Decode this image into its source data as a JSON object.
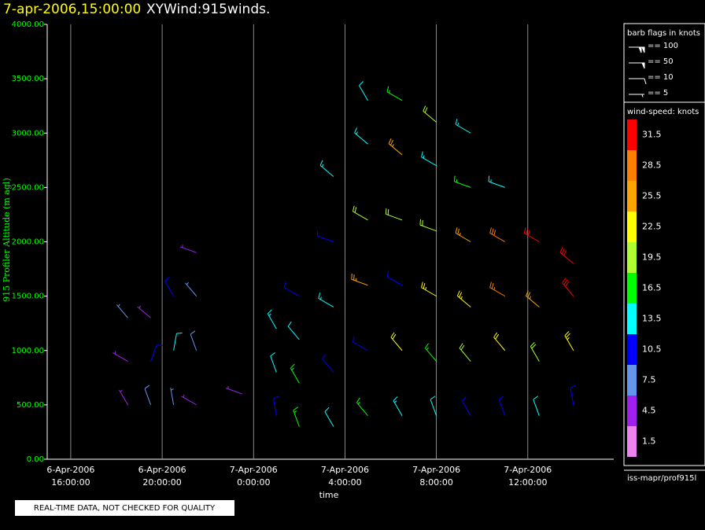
{
  "chart_data": {
    "type": "windbarb",
    "title_time": "7-apr-2006,15:00:00",
    "title": "XYWind:915winds.",
    "ylabel": "915 Profiler Altitude (m agl)",
    "xlabel": "time",
    "note": "REAL-TIME DATA, NOT CHECKED FOR QUALITY",
    "source": "iss-mapr/prof915l",
    "xlim": [
      14.97,
      39.76
    ],
    "ylim": [
      0,
      4000
    ],
    "xticks": [
      {
        "value": 16,
        "date": "6-Apr-2006",
        "label": "16:00:00"
      },
      {
        "value": 20,
        "date": "6-Apr-2006",
        "label": "20:00:00"
      },
      {
        "value": 24,
        "date": "7-Apr-2006",
        "label": "0:00:00"
      },
      {
        "value": 28,
        "date": "7-Apr-2006",
        "label": "4:00:00"
      },
      {
        "value": 32,
        "date": "7-Apr-2006",
        "label": "8:00:00"
      },
      {
        "value": 36,
        "date": "7-Apr-2006",
        "label": "12:00:00"
      }
    ],
    "yticks": [
      {
        "value": 0,
        "label": "0.00"
      },
      {
        "value": 500,
        "label": "500.00"
      },
      {
        "value": 1000,
        "label": "1000.00"
      },
      {
        "value": 1500,
        "label": "1500.00"
      },
      {
        "value": 2000,
        "label": "2000.00"
      },
      {
        "value": 2500,
        "label": "2500.00"
      },
      {
        "value": 3000,
        "label": "3000.00"
      },
      {
        "value": 3500,
        "label": "3500.00"
      },
      {
        "value": 4000,
        "label": "4000.00"
      }
    ],
    "grid": true,
    "flag_title": "barb flags in knots",
    "flags": [
      {
        "value": 100,
        "label": "== 100"
      },
      {
        "value": 50,
        "label": "== 50"
      },
      {
        "value": 10,
        "label": "== 10"
      },
      {
        "value": 5,
        "label": "== 5"
      }
    ],
    "scale_title": "wind-speed: knots",
    "scale": [
      {
        "value": 31.5,
        "label": "31.5",
        "color": "#ff0000"
      },
      {
        "value": 28.5,
        "label": "28.5",
        "color": "#ff7f00"
      },
      {
        "value": 25.5,
        "label": "25.5",
        "color": "#ffa500"
      },
      {
        "value": 22.5,
        "label": "22.5",
        "color": "#ffff00"
      },
      {
        "value": 19.5,
        "label": "19.5",
        "color": "#adff2f"
      },
      {
        "value": 16.5,
        "label": "16.5",
        "color": "#00ff00"
      },
      {
        "value": 13.5,
        "label": "13.5",
        "color": "#00ffff"
      },
      {
        "value": 10.5,
        "label": "10.5",
        "color": "#0000ff"
      },
      {
        "value": 7.5,
        "label": "7.5",
        "color": "#6495ed"
      },
      {
        "value": 4.5,
        "label": "4.5",
        "color": "#a020f0"
      },
      {
        "value": 1.5,
        "label": "1.5",
        "color": "#ee82ee"
      }
    ],
    "barbs": {
      "x": [
        18.5,
        18.5,
        18.5,
        19.5,
        19.5,
        19.5,
        20.5,
        20.5,
        20.5,
        21.5,
        21.5,
        21.5,
        21.5,
        23.5,
        25,
        25,
        25,
        26,
        26,
        26,
        26,
        27.5,
        27.5,
        27.5,
        27.5,
        27.5,
        29,
        29,
        29,
        29,
        29,
        29,
        30.5,
        30.5,
        30.5,
        30.5,
        30.5,
        30.5,
        32,
        32,
        32,
        32,
        32,
        32,
        33.5,
        33.5,
        33.5,
        33.5,
        33.5,
        33.5,
        35,
        35,
        35,
        35,
        35,
        36.5,
        36.5,
        36.5,
        36.5,
        38,
        38,
        38,
        38
      ],
      "altitude": [
        500,
        900,
        1300,
        500,
        900,
        1300,
        500,
        1000,
        1500,
        500,
        1000,
        1500,
        1900,
        600,
        400,
        800,
        1200,
        300,
        700,
        1100,
        1500,
        300,
        800,
        1400,
        2000,
        2600,
        400,
        1000,
        1600,
        2200,
        2900,
        3300,
        400,
        1000,
        1600,
        2200,
        2800,
        3300,
        400,
        900,
        1500,
        2100,
        2700,
        3100,
        400,
        900,
        1400,
        2000,
        2500,
        3000,
        400,
        1000,
        1500,
        2000,
        2500,
        400,
        900,
        1400,
        2000,
        500,
        1000,
        1500,
        1800
      ],
      "speed": [
        5,
        4,
        6,
        8,
        10,
        5,
        6,
        12,
        9,
        4,
        8,
        6,
        5,
        5,
        11,
        12,
        14,
        15,
        16,
        12,
        11,
        12,
        11,
        14,
        10,
        13,
        17,
        11,
        26,
        18,
        14,
        12,
        14,
        22,
        11,
        20,
        26,
        17,
        12,
        17,
        23,
        20,
        13,
        19,
        10,
        19,
        23,
        25,
        17,
        14,
        11,
        22,
        27,
        29,
        13,
        12,
        20,
        25,
        31,
        11,
        23,
        30,
        32
      ],
      "direction": [
        330,
        300,
        320,
        340,
        20,
        310,
        350,
        10,
        330,
        300,
        340,
        320,
        290,
        290,
        350,
        340,
        330,
        340,
        330,
        320,
        300,
        330,
        320,
        300,
        290,
        310,
        320,
        300,
        290,
        300,
        310,
        330,
        330,
        320,
        300,
        290,
        310,
        300,
        340,
        320,
        300,
        290,
        300,
        310,
        330,
        320,
        310,
        300,
        290,
        300,
        340,
        320,
        300,
        300,
        290,
        340,
        330,
        310,
        300,
        350,
        330,
        320,
        310
      ]
    }
  }
}
